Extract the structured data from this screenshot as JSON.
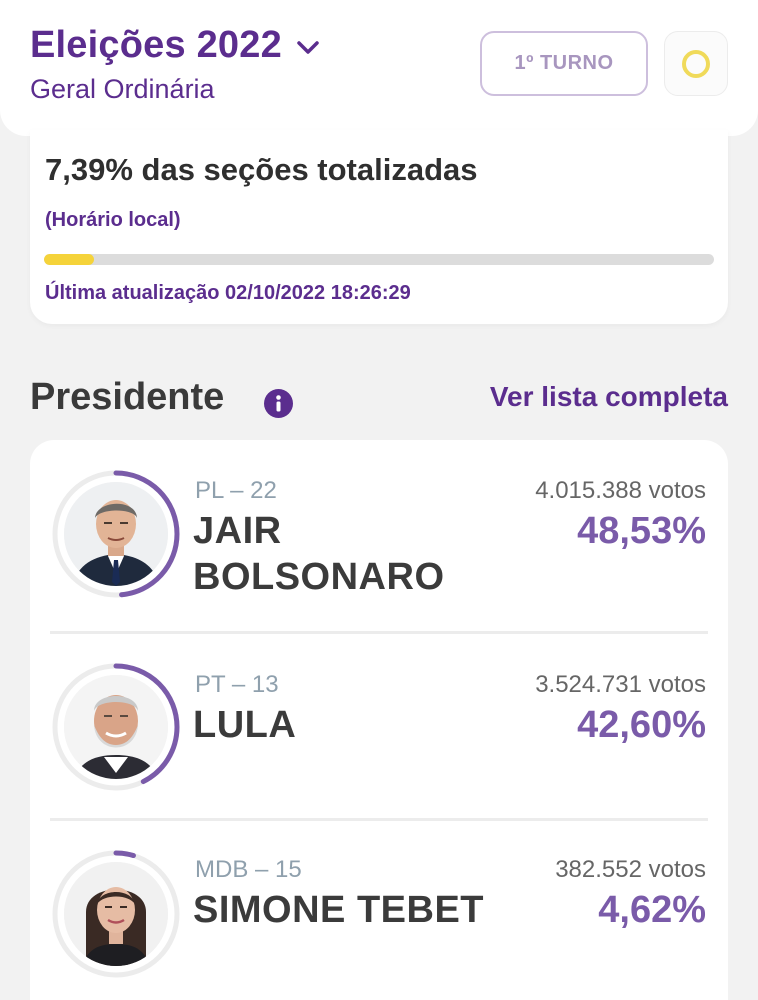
{
  "header": {
    "title": "Eleições 2022",
    "subtitle": "Geral Ordinária",
    "turno_label": "1º TURNO",
    "status_icon": "circle-ring-icon",
    "status_color": "#f0da5a"
  },
  "progress": {
    "headline": "7,39% das seções totalizadas",
    "local_time_note": "(Horário local)",
    "percent_totalized": 7.39,
    "last_update": "Última atualização 02/10/2022 18:26:29",
    "bar_color": "#f5d33a"
  },
  "section": {
    "title": "Presidente",
    "info_icon": "info-icon",
    "view_all_label": "Ver lista completa"
  },
  "candidates": [
    {
      "party": "PL – 22",
      "name_line1": "JAIR",
      "name_line2": "BOLSONARO",
      "votes": "4.015.388 votos",
      "percent": "48,53%",
      "percent_value": 48.53
    },
    {
      "party": "PT – 13",
      "name_line1": "LULA",
      "name_line2": "",
      "votes": "3.524.731 votos",
      "percent": "42,60%",
      "percent_value": 42.6
    },
    {
      "party": "MDB – 15",
      "name_line1": "SIMONE TEBET",
      "name_line2": "",
      "votes": "382.552 votos",
      "percent": "4,62%",
      "percent_value": 4.62
    }
  ],
  "colors": {
    "brand_purple": "#5b2d8e",
    "percent_purple": "#7a5ba9",
    "ring_track": "#ececec"
  }
}
